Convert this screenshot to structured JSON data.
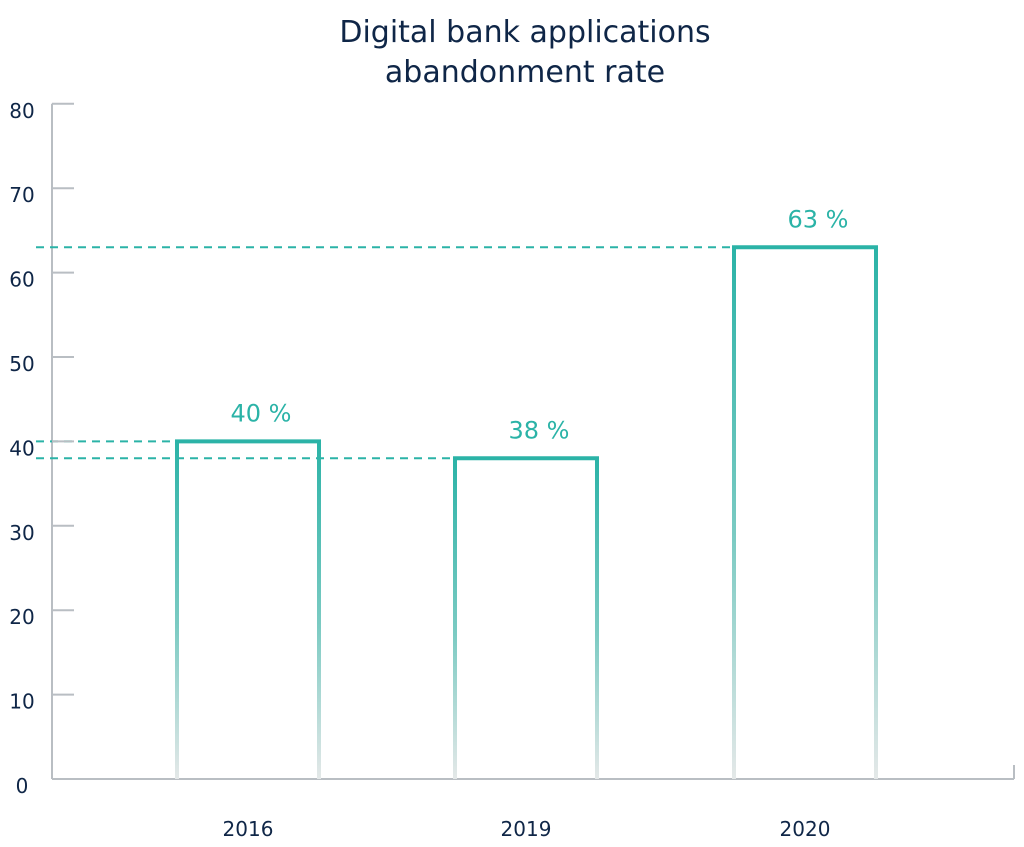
{
  "chart_data": {
    "type": "bar",
    "title_lines": [
      "Digital bank applications",
      "abandonment rate"
    ],
    "categories": [
      "2016",
      "2019",
      "2020"
    ],
    "values": [
      40,
      38,
      63
    ],
    "data_labels": [
      "40 %",
      "38 %",
      "63 %"
    ],
    "y_ticks": [
      "0",
      "10",
      "20",
      "30",
      "40",
      "50",
      "60",
      "70",
      "80"
    ],
    "ylim": [
      0,
      80
    ],
    "xlabel": "",
    "ylabel": "",
    "grid": false,
    "bar_style": "outline with vertical gradient fading to light grey at the base",
    "reference_lines": "dashed horizontal lines from the y-axis to each bar top",
    "colors": {
      "accent": "#2bb3a7",
      "accent_fade": "#e4e8e8",
      "axis": "#b9bec3",
      "text": "#0f2647"
    }
  }
}
